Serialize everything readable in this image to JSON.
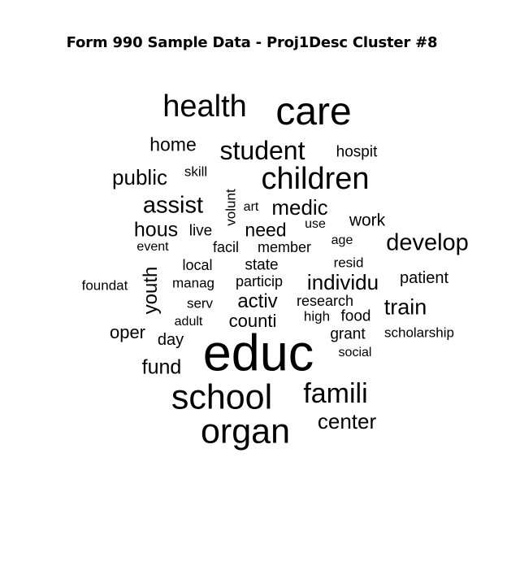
{
  "title": "Form 990 Sample Data - Proj1Desc Cluster #8",
  "words": [
    "health",
    "care",
    "home",
    "student",
    "hospit",
    "public",
    "skill",
    "children",
    "assist",
    "volunt",
    "art",
    "medic",
    "work",
    "hous",
    "live",
    "need",
    "use",
    "develop",
    "event",
    "facil",
    "member",
    "age",
    "local",
    "state",
    "resid",
    "foundat",
    "youth",
    "manag",
    "particip",
    "individu",
    "patient",
    "serv",
    "activ",
    "research",
    "train",
    "adult",
    "counti",
    "high",
    "food",
    "oper",
    "day",
    "grant",
    "scholarship",
    "educ",
    "social",
    "fund",
    "school",
    "famili",
    "organ",
    "center"
  ]
}
